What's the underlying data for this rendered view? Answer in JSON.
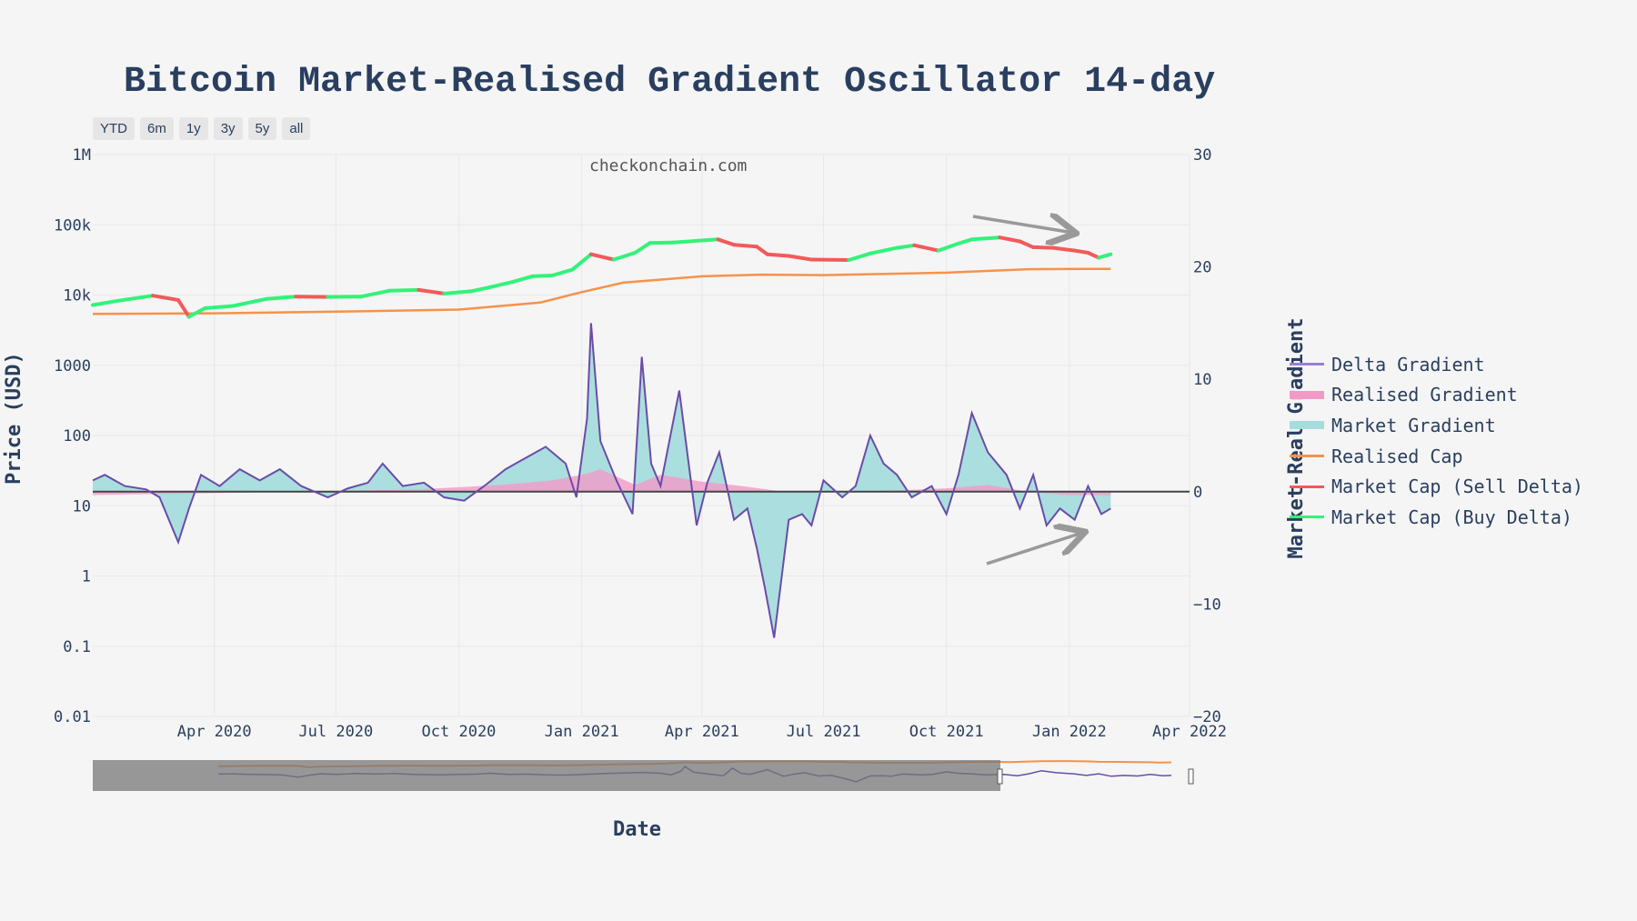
{
  "chart_data": {
    "type": "line",
    "title": "Bitcoin Market-Realised Gradient Oscillator 14-day",
    "watermark": "checkonchain.com",
    "xlabel": "Date",
    "ylabel_left": "Price (USD)",
    "ylabel_right": "Market-Real Gradient",
    "range_buttons": [
      "YTD",
      "6m",
      "1y",
      "3y",
      "5y",
      "all"
    ],
    "x_ticks": [
      "Apr 2020",
      "Jul 2020",
      "Oct 2020",
      "Jan 2021",
      "Apr 2021",
      "Jul 2021",
      "Oct 2021",
      "Jan 2022",
      "Apr 2022"
    ],
    "xlim": [
      "2020-01-01",
      "2022-04-01"
    ],
    "y_left_ticks": [
      "1M",
      "100k",
      "10k",
      "1000",
      "100",
      "10",
      "1",
      "0.1",
      "0.01"
    ],
    "y_left_scale": "log",
    "y_left_range": [
      0.01,
      1000000
    ],
    "y_right_ticks": [
      "30",
      "20",
      "10",
      "0",
      "−10",
      "−20"
    ],
    "y_right_range": [
      -20,
      30
    ],
    "legend_placement": "right",
    "legend": [
      {
        "name": "Delta Gradient",
        "color": "#9b7fd4",
        "kind": "line"
      },
      {
        "name": "Realised Gradient",
        "color": "#f29ac7",
        "kind": "fill"
      },
      {
        "name": "Market Gradient",
        "color": "#a6dcdc",
        "kind": "fill"
      },
      {
        "name": "Realised Cap",
        "color": "#f5924a",
        "kind": "line"
      },
      {
        "name": "Market Cap (Sell Delta)",
        "color": "#f25a5a",
        "kind": "line"
      },
      {
        "name": "Market Cap (Buy Delta)",
        "color": "#33f27a",
        "kind": "line"
      }
    ],
    "colors": {
      "market_cap_sell": "#f25a5a",
      "market_cap_buy": "#33f27a",
      "realised_cap": "#f5924a",
      "market_gradient_fill": "#a6dcdc",
      "realised_gradient_fill": "#f29ac7",
      "delta_gradient_line": "#6a4ca8",
      "zero_line": "#444444",
      "annotation_arrows": "#999999"
    },
    "series": [
      {
        "name": "Market Cap",
        "axis": "left",
        "x": [
          "2020-01-01",
          "2020-01-20",
          "2020-02-15",
          "2020-03-05",
          "2020-03-13",
          "2020-03-25",
          "2020-04-15",
          "2020-05-10",
          "2020-06-01",
          "2020-06-25",
          "2020-07-20",
          "2020-08-10",
          "2020-09-01",
          "2020-09-20",
          "2020-10-10",
          "2020-10-25",
          "2020-11-10",
          "2020-11-25",
          "2020-12-10",
          "2020-12-25",
          "2021-01-08",
          "2021-01-25",
          "2021-02-10",
          "2021-02-21",
          "2021-03-10",
          "2021-04-13",
          "2021-04-25",
          "2021-05-12",
          "2021-05-20",
          "2021-06-05",
          "2021-06-22",
          "2021-07-20",
          "2021-08-05",
          "2021-08-25",
          "2021-09-07",
          "2021-09-25",
          "2021-10-10",
          "2021-10-20",
          "2021-11-10",
          "2021-11-25",
          "2021-12-05",
          "2021-12-20",
          "2022-01-05",
          "2022-01-15",
          "2022-01-23",
          "2022-02-01"
        ],
        "y": [
          7200,
          8300,
          9800,
          8500,
          4900,
          6500,
          7000,
          8800,
          9500,
          9400,
          9500,
          11500,
          11800,
          10500,
          11300,
          13000,
          15300,
          18500,
          19000,
          23000,
          38000,
          32000,
          40000,
          55000,
          56000,
          62000,
          52000,
          49000,
          38000,
          36000,
          32000,
          31500,
          39000,
          47000,
          51000,
          43000,
          54000,
          62000,
          66000,
          58000,
          48000,
          47000,
          43000,
          40000,
          34000,
          38000
        ]
      },
      {
        "name": "Realised Cap",
        "axis": "left",
        "x": [
          "2020-01-01",
          "2020-04-01",
          "2020-07-01",
          "2020-10-01",
          "2020-12-01",
          "2021-01-01",
          "2021-02-01",
          "2021-04-01",
          "2021-05-15",
          "2021-07-01",
          "2021-10-01",
          "2021-12-01",
          "2022-01-15",
          "2022-02-01"
        ],
        "y": [
          5400,
          5500,
          5800,
          6200,
          7800,
          11000,
          15000,
          18500,
          19500,
          19200,
          20800,
          23300,
          23500,
          23500
        ]
      },
      {
        "name": "Delta Gradient",
        "axis": "right",
        "x": [
          "2020-01-01",
          "2020-01-10",
          "2020-01-25",
          "2020-02-10",
          "2020-02-20",
          "2020-03-05",
          "2020-03-13",
          "2020-03-22",
          "2020-04-05",
          "2020-04-20",
          "2020-05-05",
          "2020-05-20",
          "2020-06-05",
          "2020-06-25",
          "2020-07-10",
          "2020-07-25",
          "2020-08-05",
          "2020-08-20",
          "2020-09-05",
          "2020-09-20",
          "2020-10-05",
          "2020-10-20",
          "2020-11-05",
          "2020-11-20",
          "2020-12-05",
          "2020-12-20",
          "2020-12-28",
          "2021-01-05",
          "2021-01-08",
          "2021-01-15",
          "2021-01-27",
          "2021-02-08",
          "2021-02-15",
          "2021-02-22",
          "2021-03-01",
          "2021-03-15",
          "2021-03-28",
          "2021-04-05",
          "2021-04-14",
          "2021-04-25",
          "2021-05-05",
          "2021-05-12",
          "2021-05-18",
          "2021-05-25",
          "2021-06-05",
          "2021-06-15",
          "2021-06-22",
          "2021-07-01",
          "2021-07-15",
          "2021-07-25",
          "2021-08-05",
          "2021-08-15",
          "2021-08-25",
          "2021-09-05",
          "2021-09-20",
          "2021-10-01",
          "2021-10-10",
          "2021-10-20",
          "2021-11-01",
          "2021-11-15",
          "2021-11-25",
          "2021-12-05",
          "2021-12-15",
          "2021-12-25",
          "2022-01-05",
          "2022-01-15",
          "2022-01-25",
          "2022-02-01"
        ],
        "y": [
          1.0,
          1.5,
          0.5,
          0.2,
          -0.5,
          -4.5,
          -1.5,
          1.5,
          0.5,
          2.0,
          1.0,
          2.0,
          0.5,
          -0.5,
          0.3,
          0.8,
          2.5,
          0.5,
          0.8,
          -0.5,
          -0.8,
          0.5,
          2.0,
          3.0,
          4.0,
          2.5,
          -0.5,
          6.5,
          15.0,
          4.5,
          1.0,
          -2.0,
          12.0,
          2.5,
          0.5,
          9.0,
          -3.0,
          0.8,
          3.5,
          -2.5,
          -1.5,
          -5.0,
          -8.5,
          -13.0,
          -2.5,
          -2.0,
          -3.0,
          1.0,
          -0.5,
          0.5,
          5.0,
          2.5,
          1.5,
          -0.5,
          0.5,
          -2.0,
          1.5,
          7.0,
          3.5,
          1.5,
          -1.5,
          1.5,
          -3.0,
          -1.5,
          -2.5,
          0.5,
          -2.0,
          -1.5
        ]
      },
      {
        "name": "Realised Gradient",
        "axis": "right",
        "x": [
          "2020-01-01",
          "2020-06-01",
          "2020-09-01",
          "2020-11-01",
          "2020-12-10",
          "2021-01-05",
          "2021-01-15",
          "2021-02-10",
          "2021-03-01",
          "2021-04-01",
          "2021-05-01",
          "2021-06-01",
          "2021-08-01",
          "2021-10-01",
          "2021-11-01",
          "2021-12-01",
          "2022-01-01",
          "2022-02-01"
        ],
        "y": [
          -0.3,
          0.0,
          0.2,
          0.6,
          1.0,
          1.6,
          2.0,
          0.6,
          1.5,
          0.9,
          0.5,
          0.0,
          0.0,
          0.3,
          0.6,
          0.0,
          -0.3,
          -0.3
        ]
      }
    ]
  }
}
